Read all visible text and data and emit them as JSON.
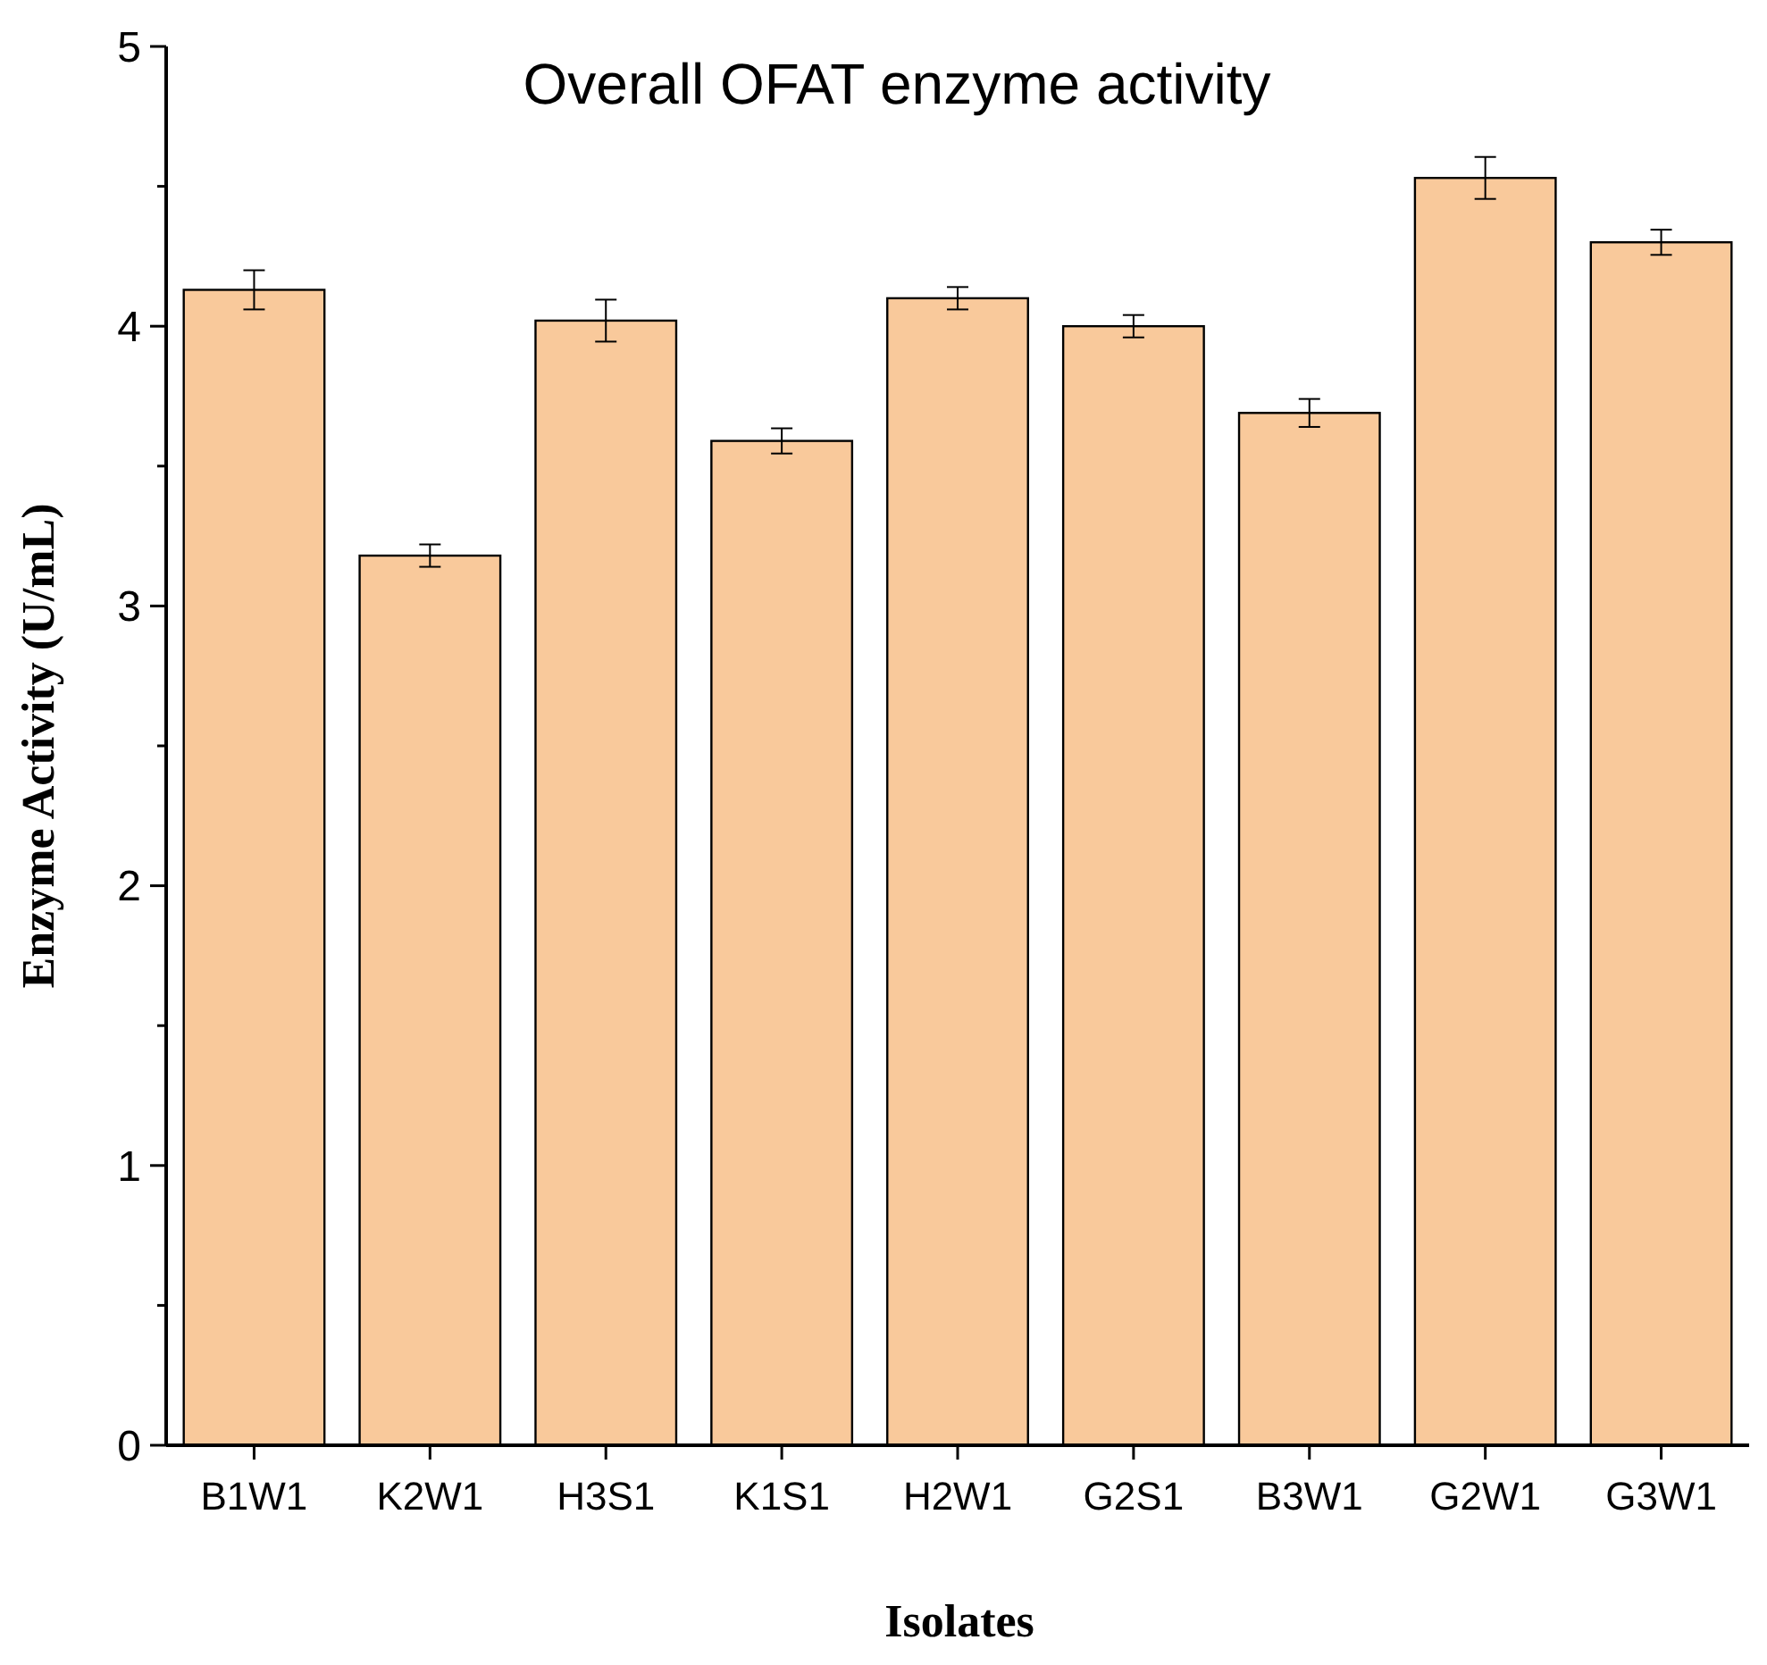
{
  "chart_data": {
    "type": "bar",
    "title": "Overall OFAT enzyme activity",
    "xlabel": "Isolates",
    "ylabel": "Enzyme Activity (U/mL)",
    "categories": [
      "B1W1",
      "K2W1",
      "H3S1",
      "K1S1",
      "H2W1",
      "G2S1",
      "B3W1",
      "G2W1",
      "G3W1"
    ],
    "values": [
      4.13,
      3.18,
      4.02,
      3.59,
      4.1,
      4.0,
      3.69,
      4.53,
      4.3
    ],
    "errors": [
      0.07,
      0.04,
      0.075,
      0.045,
      0.04,
      0.04,
      0.05,
      0.075,
      0.045
    ],
    "color": "#f9c99b",
    "ylim": [
      0,
      5
    ],
    "yticks": [
      0,
      {
        "value": 0.5,
        "label": null
      },
      1,
      {
        "value": 1.5,
        "label": null
      },
      2,
      {
        "value": 2.5,
        "label": null
      },
      3,
      {
        "value": 3.5,
        "label": null
      },
      4,
      {
        "value": 4.5,
        "label": null
      },
      5
    ],
    "grid": false
  }
}
